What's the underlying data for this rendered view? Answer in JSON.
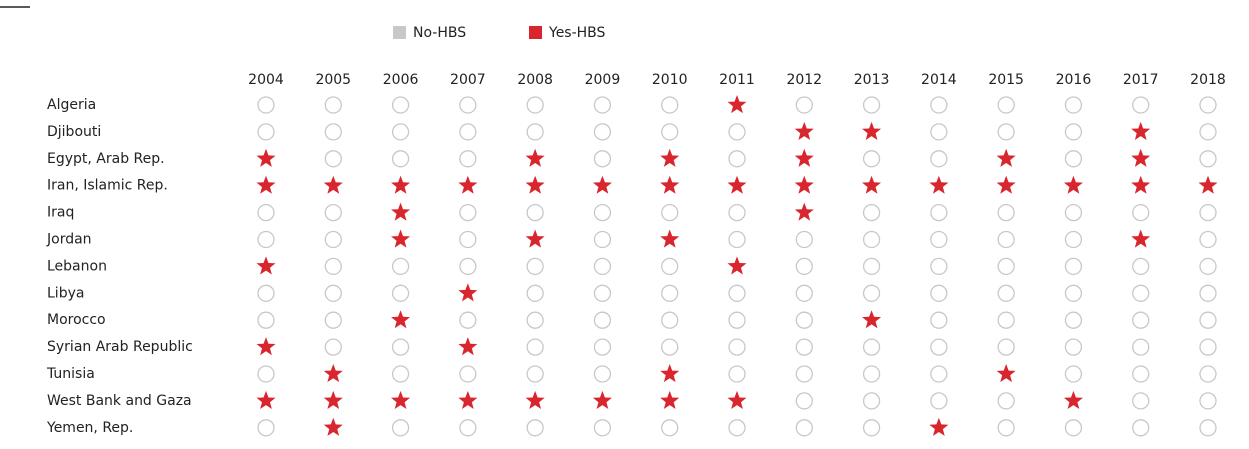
{
  "chart_data": {
    "type": "dot-matrix",
    "legend": [
      {
        "name": "No-HBS",
        "color": "#c8c8c8"
      },
      {
        "name": "Yes-HBS",
        "color": "#d9262e"
      }
    ],
    "x": [
      2004,
      2005,
      2006,
      2007,
      2008,
      2009,
      2010,
      2011,
      2012,
      2013,
      2014,
      2015,
      2016,
      2017,
      2018
    ],
    "rows": [
      {
        "name": "Algeria",
        "values": [
          0,
          0,
          0,
          0,
          0,
          0,
          0,
          1,
          0,
          0,
          0,
          0,
          0,
          0,
          0
        ]
      },
      {
        "name": "Djibouti",
        "values": [
          0,
          0,
          0,
          0,
          0,
          0,
          0,
          0,
          1,
          1,
          0,
          0,
          0,
          1,
          0
        ]
      },
      {
        "name": "Egypt, Arab Rep.",
        "values": [
          1,
          0,
          0,
          0,
          1,
          0,
          1,
          0,
          1,
          0,
          0,
          1,
          0,
          1,
          0
        ]
      },
      {
        "name": "Iran, Islamic Rep.",
        "values": [
          1,
          1,
          1,
          1,
          1,
          1,
          1,
          1,
          1,
          1,
          1,
          1,
          1,
          1,
          1
        ]
      },
      {
        "name": "Iraq",
        "values": [
          0,
          0,
          1,
          0,
          0,
          0,
          0,
          0,
          1,
          0,
          0,
          0,
          0,
          0,
          0
        ]
      },
      {
        "name": "Jordan",
        "values": [
          0,
          0,
          1,
          0,
          1,
          0,
          1,
          0,
          0,
          0,
          0,
          0,
          0,
          1,
          0
        ]
      },
      {
        "name": "Lebanon",
        "values": [
          1,
          0,
          0,
          0,
          0,
          0,
          0,
          1,
          0,
          0,
          0,
          0,
          0,
          0,
          0
        ]
      },
      {
        "name": "Libya",
        "values": [
          0,
          0,
          0,
          1,
          0,
          0,
          0,
          0,
          0,
          0,
          0,
          0,
          0,
          0,
          0
        ]
      },
      {
        "name": "Morocco",
        "values": [
          0,
          0,
          1,
          0,
          0,
          0,
          0,
          0,
          0,
          1,
          0,
          0,
          0,
          0,
          0
        ]
      },
      {
        "name": "Syrian Arab Republic",
        "values": [
          1,
          0,
          0,
          1,
          0,
          0,
          0,
          0,
          0,
          0,
          0,
          0,
          0,
          0,
          0
        ]
      },
      {
        "name": "Tunisia",
        "values": [
          0,
          1,
          0,
          0,
          0,
          0,
          1,
          0,
          0,
          0,
          0,
          1,
          0,
          0,
          0
        ]
      },
      {
        "name": "West Bank and Gaza",
        "values": [
          1,
          1,
          1,
          1,
          1,
          1,
          1,
          1,
          0,
          0,
          0,
          0,
          1,
          0,
          0
        ]
      },
      {
        "name": "Yemen, Rep.",
        "values": [
          0,
          1,
          0,
          0,
          0,
          0,
          0,
          0,
          0,
          0,
          1,
          0,
          0,
          0,
          0
        ]
      }
    ]
  }
}
